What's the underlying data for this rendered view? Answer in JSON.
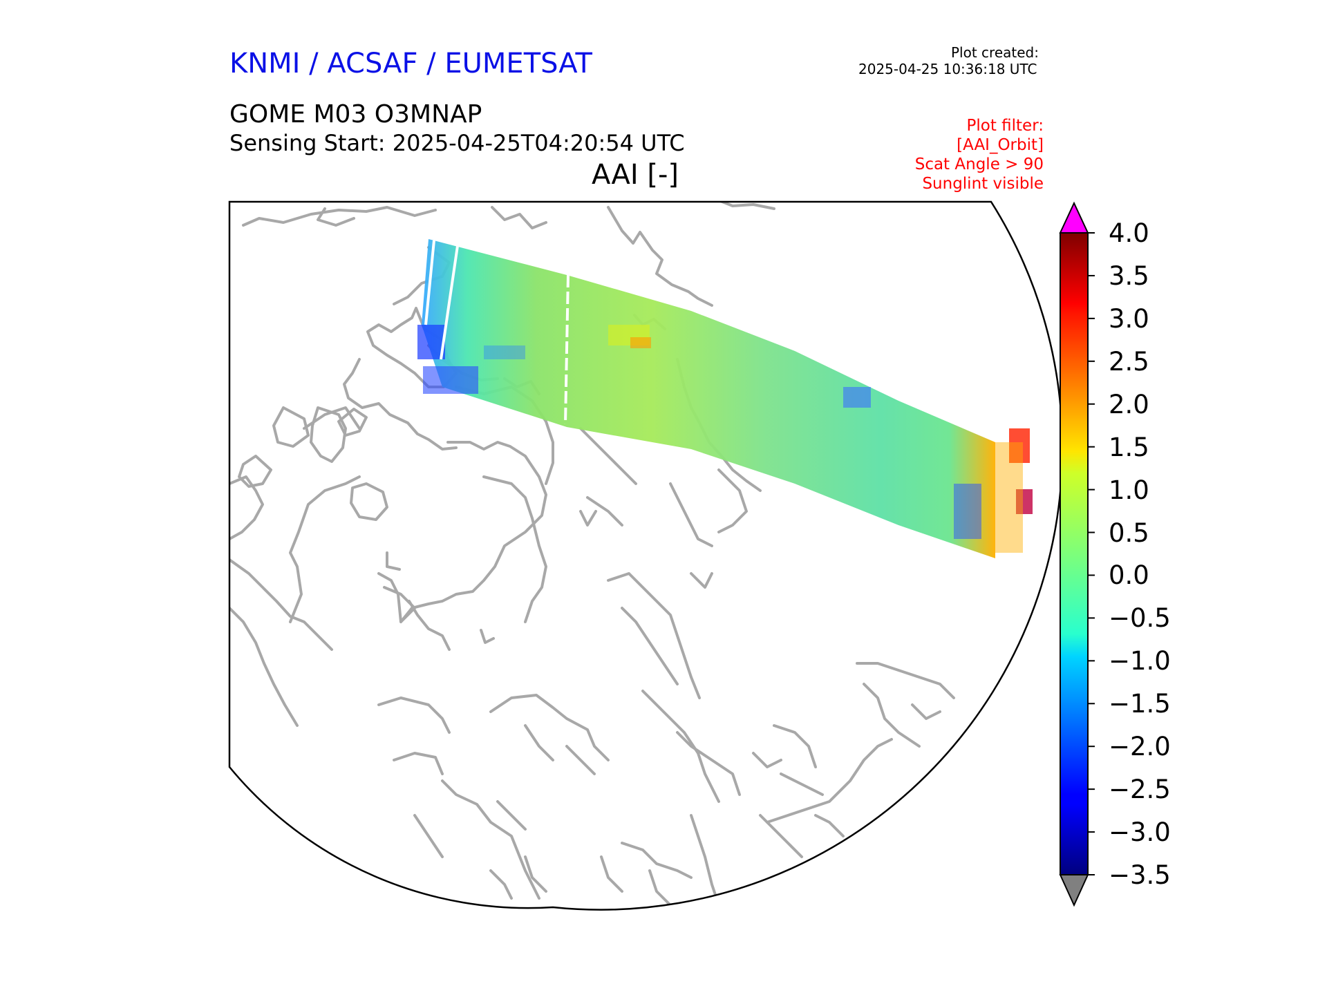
{
  "header": {
    "organization": "KNMI / ACSAF / EUMETSAT",
    "plot_created_label": "Plot created:",
    "plot_created_time": "2025-04-25 10:36:18 UTC",
    "product": "GOME M03 O3MNAP",
    "sensing_start": "Sensing Start: 2025-04-25T04:20:54 UTC",
    "variable_title": "AAI [-]"
  },
  "plot_filter": [
    "Plot filter:",
    "[AAI_Orbit]",
    "Scat Angle > 90",
    "Sunglint visible"
  ],
  "colorbar": {
    "ticks": [
      "4.0",
      "3.5",
      "3.0",
      "2.5",
      "2.0",
      "1.5",
      "1.0",
      "0.5",
      "0.0",
      "−0.5",
      "−1.0",
      "−1.5",
      "−2.0",
      "−2.5",
      "−3.0",
      "−3.5"
    ],
    "min": -3.5,
    "max": 4.0,
    "extend_max_color": "#ff00ff",
    "extend_min_color": "#808080",
    "colormap": "jet"
  },
  "map": {
    "projection": "polar stereographic (north)",
    "coastline_color": "#a8a8a8",
    "border_color": "#000000"
  }
}
